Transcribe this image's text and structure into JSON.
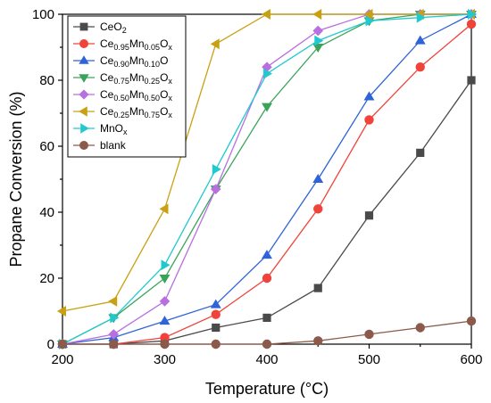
{
  "chart_data": {
    "type": "line",
    "xlabel": "Temperature (°C)",
    "ylabel": "Propane Conversion (%)",
    "xlim": [
      200,
      600
    ],
    "ylim": [
      0,
      100
    ],
    "x_ticks": [
      200,
      300,
      400,
      500,
      600
    ],
    "y_ticks": [
      0,
      20,
      40,
      60,
      80,
      100
    ],
    "legend_position": "top-left",
    "series": [
      {
        "name": "CeO2",
        "label_parts": [
          [
            "CeO",
            "n"
          ],
          [
            "2",
            "sub"
          ]
        ],
        "color": "#4a4a4a",
        "marker": "square",
        "x": [
          200,
          250,
          300,
          350,
          400,
          450,
          500,
          550,
          600
        ],
        "y": [
          0,
          0,
          1,
          5,
          8,
          17,
          39,
          58,
          80
        ]
      },
      {
        "name": "Ce0.95Mn0.05Ox",
        "label_parts": [
          [
            "Ce",
            "n"
          ],
          [
            "0.95",
            "sub"
          ],
          [
            "Mn",
            "n"
          ],
          [
            "0.05",
            "sub"
          ],
          [
            "O",
            "n"
          ],
          [
            "x",
            "sub"
          ]
        ],
        "color": "#f0433a",
        "marker": "circle",
        "x": [
          200,
          250,
          300,
          350,
          400,
          450,
          500,
          550,
          600
        ],
        "y": [
          0,
          0,
          2,
          9,
          20,
          41,
          68,
          84,
          97
        ]
      },
      {
        "name": "Ce0.90Mn0.10O",
        "label_parts": [
          [
            "Ce",
            "n"
          ],
          [
            "0.90",
            "sub"
          ],
          [
            "Mn",
            "n"
          ],
          [
            "0.10",
            "sub"
          ],
          [
            "O",
            "n"
          ]
        ],
        "color": "#2f63d8",
        "marker": "triangle-up",
        "x": [
          200,
          250,
          300,
          350,
          400,
          450,
          500,
          550,
          600
        ],
        "y": [
          0,
          2,
          7,
          12,
          27,
          50,
          75,
          92,
          100
        ]
      },
      {
        "name": "Ce0.75Mn0.25Ox",
        "label_parts": [
          [
            "Ce",
            "n"
          ],
          [
            "0.75",
            "sub"
          ],
          [
            "Mn",
            "n"
          ],
          [
            "0.25",
            "sub"
          ],
          [
            "O",
            "n"
          ],
          [
            "x",
            "sub"
          ]
        ],
        "color": "#3aa35a",
        "marker": "triangle-down",
        "x": [
          200,
          250,
          300,
          350,
          400,
          450,
          500,
          550,
          600
        ],
        "y": [
          0,
          8,
          20,
          47,
          72,
          90,
          98,
          100,
          100
        ]
      },
      {
        "name": "Ce0.50Mn0.50Ox",
        "label_parts": [
          [
            "Ce",
            "n"
          ],
          [
            "0.50",
            "sub"
          ],
          [
            "Mn",
            "n"
          ],
          [
            "0.50",
            "sub"
          ],
          [
            "O",
            "n"
          ],
          [
            "x",
            "sub"
          ]
        ],
        "color": "#b86fe0",
        "marker": "diamond",
        "x": [
          200,
          250,
          300,
          350,
          400,
          450,
          500,
          550,
          600
        ],
        "y": [
          0,
          3,
          13,
          47,
          84,
          95,
          100,
          100,
          100
        ]
      },
      {
        "name": "Ce0.25Mn0.75Ox",
        "label_parts": [
          [
            "Ce",
            "n"
          ],
          [
            "0.25",
            "sub"
          ],
          [
            "Mn",
            "n"
          ],
          [
            "0.75",
            "sub"
          ],
          [
            "O",
            "n"
          ],
          [
            "x",
            "sub"
          ]
        ],
        "color": "#c8a012",
        "marker": "triangle-left",
        "x": [
          200,
          250,
          300,
          350,
          400,
          450,
          500,
          550,
          600
        ],
        "y": [
          10,
          13,
          41,
          91,
          100,
          100,
          100,
          100,
          100
        ]
      },
      {
        "name": "MnOx",
        "label_parts": [
          [
            "MnO",
            "n"
          ],
          [
            "x",
            "sub"
          ]
        ],
        "color": "#21c9cf",
        "marker": "triangle-right",
        "x": [
          200,
          250,
          300,
          350,
          400,
          450,
          500,
          550,
          600
        ],
        "y": [
          0,
          8,
          24,
          53,
          82,
          92,
          98,
          99,
          100
        ]
      },
      {
        "name": "blank",
        "label_parts": [
          [
            "blank",
            "n"
          ]
        ],
        "color": "#8b5a4b",
        "marker": "circle",
        "x": [
          200,
          250,
          300,
          350,
          400,
          450,
          500,
          550,
          600
        ],
        "y": [
          0,
          0,
          0,
          0,
          0,
          1,
          3,
          5,
          7
        ]
      }
    ]
  }
}
